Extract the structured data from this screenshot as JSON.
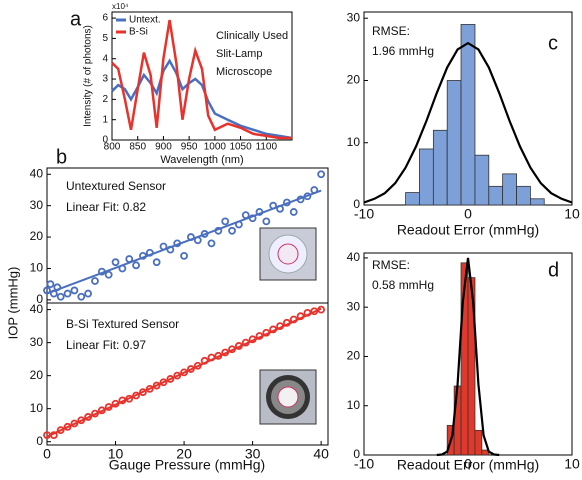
{
  "chart_data": [
    {
      "type": "line",
      "panel_label": "a",
      "xlabel": "Wavelength (nm)",
      "ylabel": "Intensity (# of photons)",
      "y_multiplier": "x10⁴",
      "annotations": [
        "Clinically Used",
        "Slit-Lamp",
        "Microscope"
      ],
      "xlim": [
        800,
        1150
      ],
      "ylim": [
        0,
        6.3
      ],
      "xticks": [
        800,
        850,
        900,
        950,
        1000,
        1050,
        1100
      ],
      "yticks": [
        0,
        1,
        2,
        3,
        4,
        5,
        6
      ],
      "legend": "upper left",
      "x": [
        800,
        812,
        825,
        837,
        850,
        862,
        875,
        887,
        900,
        912,
        925,
        937,
        950,
        962,
        975,
        987,
        1000,
        1025,
        1050,
        1075,
        1100,
        1125,
        1150
      ],
      "series": [
        {
          "name": "Untext.",
          "color": "#4a6fc0",
          "values": [
            2.4,
            2.7,
            2.5,
            2.0,
            2.6,
            3.2,
            2.8,
            2.3,
            3.4,
            3.9,
            3.3,
            2.5,
            2.8,
            3.0,
            2.7,
            1.9,
            1.3,
            1.0,
            0.7,
            0.5,
            0.3,
            0.2,
            0.1
          ]
        },
        {
          "name": "B-Si",
          "color": "#e8322b",
          "values": [
            3.8,
            3.5,
            2.0,
            0.5,
            2.5,
            4.3,
            3.2,
            0.6,
            4.0,
            5.9,
            3.8,
            1.0,
            3.0,
            4.4,
            3.5,
            1.2,
            0.5,
            0.8,
            0.6,
            0.3,
            0.2,
            0.1,
            0.1
          ]
        }
      ]
    },
    {
      "type": "scatter",
      "panel_label": "b",
      "ylabel": "IOP (mmHg)",
      "annotations": [
        "Untextured Sensor",
        "Linear Fit: 0.82"
      ],
      "color": "#4a6fc0",
      "xlim": [
        0,
        41
      ],
      "ylim": [
        -1,
        42
      ],
      "yticks": [
        0,
        10,
        20,
        30,
        40
      ],
      "x": [
        0,
        0.5,
        1,
        1.5,
        2,
        3,
        4,
        5,
        6,
        7,
        8,
        9,
        10,
        11,
        12,
        13,
        14,
        15,
        16,
        17,
        18,
        19,
        20,
        21,
        22,
        23,
        24,
        25,
        26,
        27,
        28,
        29,
        30,
        31,
        32,
        33,
        34,
        35,
        36,
        37,
        38,
        39,
        40
      ],
      "values": [
        3,
        5,
        2,
        4,
        1,
        2,
        3,
        1,
        2,
        6,
        9,
        8,
        12,
        10,
        13,
        11,
        14,
        15,
        12,
        17,
        16,
        18,
        14,
        20,
        19,
        21,
        18,
        22,
        25,
        22,
        24,
        27,
        26,
        28,
        25,
        30,
        29,
        31,
        28,
        32,
        33,
        35,
        40
      ],
      "fit": {
        "x": [
          0,
          40
        ],
        "values": [
          2,
          34.8
        ]
      }
    },
    {
      "type": "scatter",
      "xlabel": "Gauge Pressure (mmHg)",
      "annotations": [
        "B-Si Textured Sensor",
        "Linear Fit: 0.97"
      ],
      "color": "#e8322b",
      "xlim": [
        0,
        41
      ],
      "ylim": [
        -1,
        42
      ],
      "xticks": [
        0,
        10,
        20,
        30,
        40
      ],
      "yticks": [
        0,
        10,
        20,
        30,
        40
      ],
      "x": [
        0,
        1,
        2,
        3,
        4,
        5,
        6,
        7,
        8,
        9,
        10,
        11,
        12,
        13,
        14,
        15,
        16,
        17,
        18,
        19,
        20,
        21,
        22,
        23,
        24,
        25,
        26,
        27,
        28,
        29,
        30,
        31,
        32,
        33,
        34,
        35,
        36,
        37,
        38,
        39,
        40
      ],
      "values": [
        2,
        2,
        3.5,
        4.5,
        5.5,
        6.5,
        7.5,
        8.5,
        9.5,
        10.5,
        11.5,
        12.5,
        13,
        14,
        15,
        16,
        17,
        18,
        19,
        20,
        21,
        22,
        23,
        24.5,
        25.5,
        26,
        27,
        28,
        29,
        30,
        31,
        32,
        33,
        34,
        35,
        36,
        37,
        38,
        39,
        39.5,
        40
      ],
      "fit": {
        "x": [
          0,
          40
        ],
        "values": [
          1.5,
          40.3
        ]
      }
    },
    {
      "type": "histogram",
      "panel_label": "c",
      "xlabel": "Readout Error (mmHg)",
      "annotations": [
        "RMSE:",
        "1.96 mmHg"
      ],
      "color": "#7da0d8",
      "xlim": [
        -10,
        10
      ],
      "ylim": [
        0,
        31
      ],
      "xticks": [
        -10,
        0,
        10
      ],
      "yticks": [
        0,
        10,
        20,
        30
      ],
      "bins": [
        -6,
        -4.67,
        -3.33,
        -2,
        -0.67,
        0.67,
        2,
        3.33,
        4.67,
        6,
        7.33
      ],
      "values": [
        2,
        9,
        12,
        20,
        29,
        8,
        3,
        5,
        3,
        1
      ],
      "curve": {
        "x": [
          -10,
          -9,
          -8,
          -7,
          -6,
          -5,
          -4,
          -3,
          -2,
          -1,
          0,
          1,
          2,
          3,
          4,
          5,
          6,
          7,
          8,
          9,
          10
        ],
        "values": [
          0.4,
          1.0,
          1.9,
          3.5,
          6.0,
          9.4,
          13.5,
          18.0,
          22.1,
          25.0,
          26,
          25.0,
          22.1,
          18.0,
          13.5,
          9.4,
          6.0,
          3.5,
          1.9,
          1.0,
          0.4
        ]
      }
    },
    {
      "type": "histogram",
      "panel_label": "d",
      "xlabel": "Readout Error (mmHg)",
      "annotations": [
        "RMSE:",
        "0.58 mmHg"
      ],
      "color": "#e0392b",
      "xlim": [
        -10,
        10
      ],
      "ylim": [
        0,
        41
      ],
      "xticks": [
        -10,
        0,
        10
      ],
      "yticks": [
        0,
        10,
        20,
        30,
        40
      ],
      "bins": [
        -2,
        -1.33,
        -0.67,
        0,
        0.67,
        1.33,
        2
      ],
      "values": [
        6,
        14,
        39,
        36,
        5,
        1
      ],
      "curve": {
        "x": [
          -3,
          -2.5,
          -2,
          -1.5,
          -1,
          -0.5,
          0,
          0.5,
          1,
          1.5,
          2,
          2.5,
          3
        ],
        "values": [
          0,
          0.1,
          0.7,
          4.0,
          14.4,
          31,
          40,
          31,
          14.4,
          4.0,
          0.7,
          0.1,
          0
        ]
      }
    }
  ]
}
